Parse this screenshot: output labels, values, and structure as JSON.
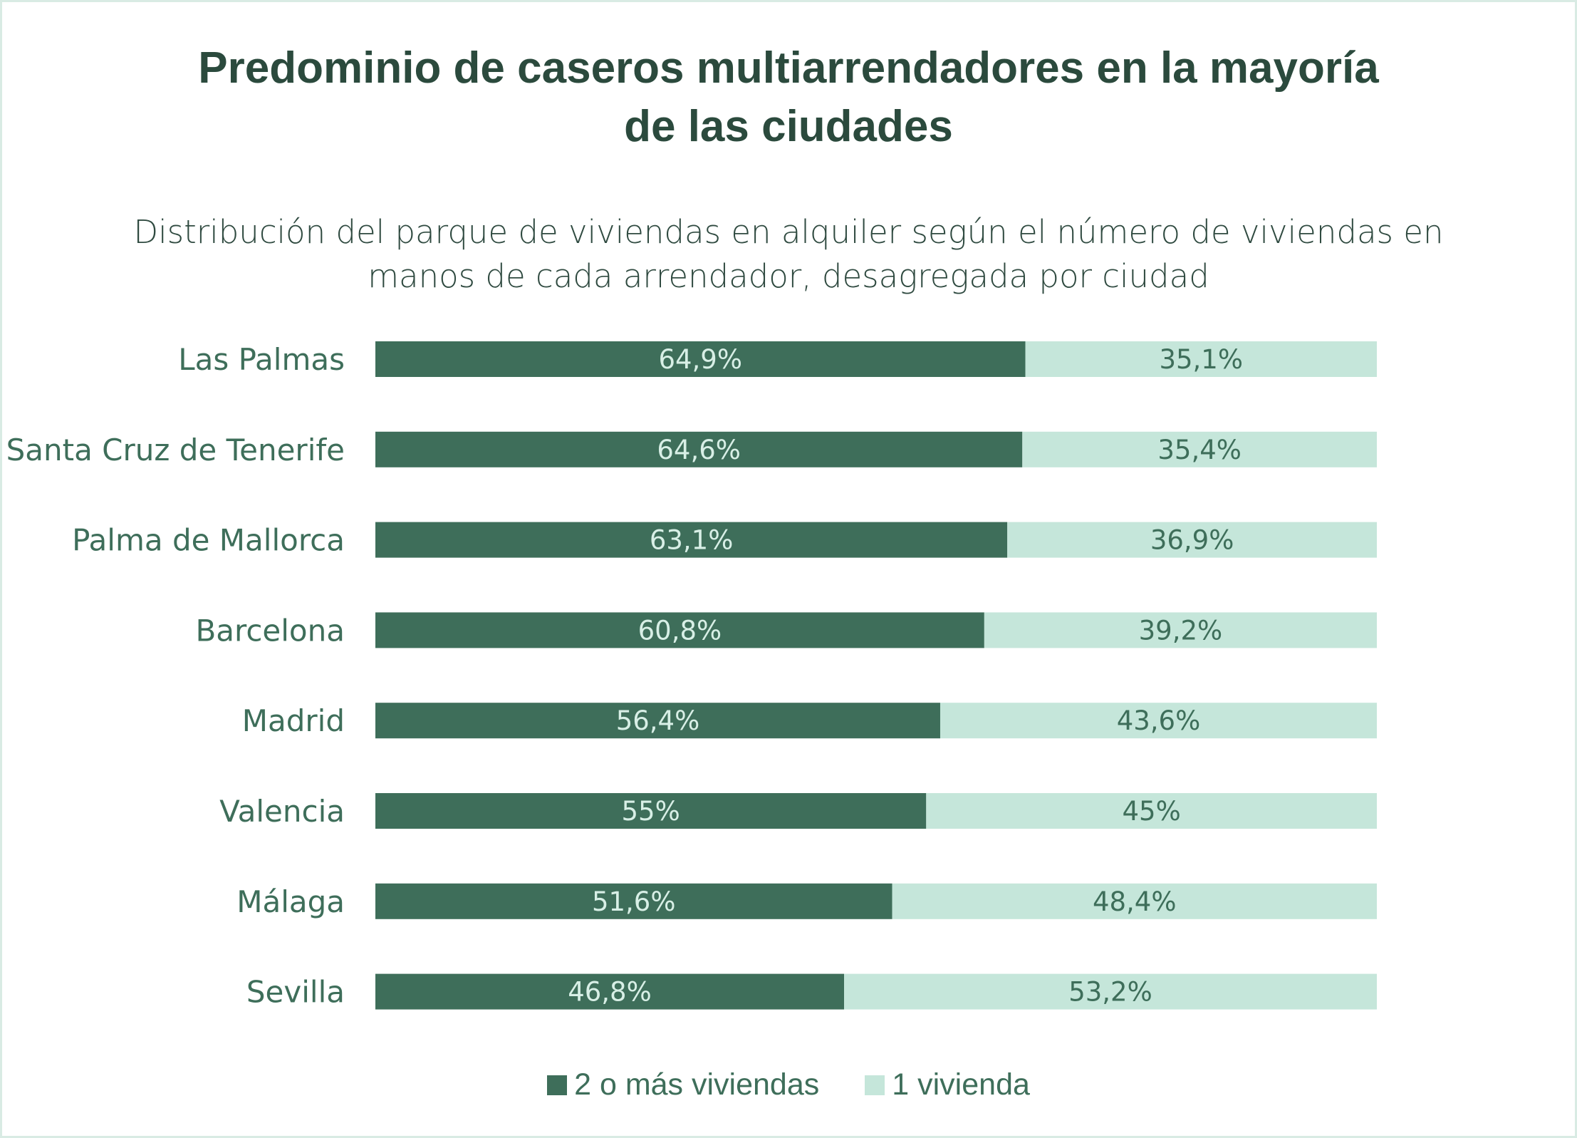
{
  "chart_data": {
    "type": "bar",
    "orientation": "horizontal",
    "stacked": true,
    "title": "Predominio de caseros multiarrendadores en la mayoría de las ciudades",
    "title_lines": [
      "Predominio de caseros multiarrendadores en la mayoría",
      "de las ciudades"
    ],
    "subtitle_lines": [
      "Distribución del parque de viviendas en alquiler según el número de viviendas en",
      "manos de cada arrendador, desagregada por ciudad"
    ],
    "categories": [
      "Las Palmas",
      "Santa Cruz de Tenerife",
      "Palma de Mallorca",
      "Barcelona",
      "Madrid",
      "Valencia",
      "Málaga",
      "Sevilla"
    ],
    "series": [
      {
        "name": "2 o más viviendas",
        "color": "#3e6e5a",
        "label_color": "#d8efe6",
        "values": [
          64.9,
          64.6,
          63.1,
          60.8,
          56.4,
          55,
          51.6,
          46.8
        ],
        "labels": [
          "64,9%",
          "64,6%",
          "63,1%",
          "60,8%",
          "56,4%",
          "55%",
          "51,6%",
          "46,8%"
        ]
      },
      {
        "name": "1 vivienda",
        "color": "#c5e6da",
        "label_color": "#3e6e5a",
        "values": [
          35.1,
          35.4,
          36.9,
          39.2,
          43.6,
          45,
          48.4,
          53.2
        ],
        "labels": [
          "35,1%",
          "35,4%",
          "36,9%",
          "39,2%",
          "43,6%",
          "45%",
          "48,4%",
          "53,2%"
        ]
      }
    ],
    "xlim": [
      0,
      100
    ],
    "grid": false,
    "legend_position": "bottom-center"
  }
}
